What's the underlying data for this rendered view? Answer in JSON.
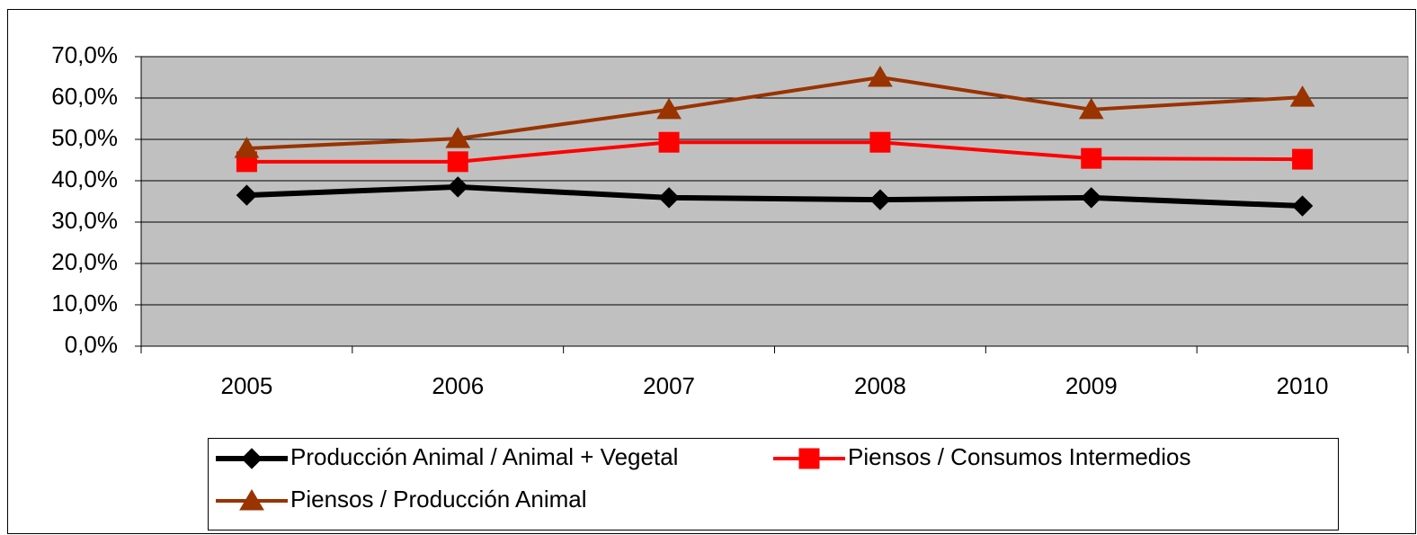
{
  "chart_data": {
    "type": "line",
    "categories": [
      "2005",
      "2006",
      "2007",
      "2008",
      "2009",
      "2010"
    ],
    "series": [
      {
        "name": "Producción Animal / Animal + Vegetal",
        "color": "#000000",
        "marker": "diamond",
        "values": [
          36.5,
          38.5,
          35.9,
          35.4,
          35.9,
          33.9
        ]
      },
      {
        "name": "Piensos / Consumos Intermedios",
        "color": "#ff0000",
        "marker": "square",
        "values": [
          44.6,
          44.6,
          49.3,
          49.3,
          45.4,
          45.2
        ]
      },
      {
        "name": "Piensos / Producción Animal",
        "color": "#993300",
        "marker": "triangle",
        "values": [
          47.8,
          50.2,
          57.2,
          65.0,
          57.2,
          60.2
        ]
      }
    ],
    "ylim": [
      0,
      70
    ],
    "yticks": [
      {
        "value": 0,
        "label": "0,0%"
      },
      {
        "value": 10,
        "label": "10,0%"
      },
      {
        "value": 20,
        "label": "20,0%"
      },
      {
        "value": 30,
        "label": "30,0%"
      },
      {
        "value": 40,
        "label": "40,0%"
      },
      {
        "value": 50,
        "label": "50,0%"
      },
      {
        "value": 60,
        "label": "60,0%"
      },
      {
        "value": 70,
        "label": "70,0%"
      }
    ],
    "grid": true,
    "plot_background": "#c0c0c0",
    "legend": "bottom"
  }
}
